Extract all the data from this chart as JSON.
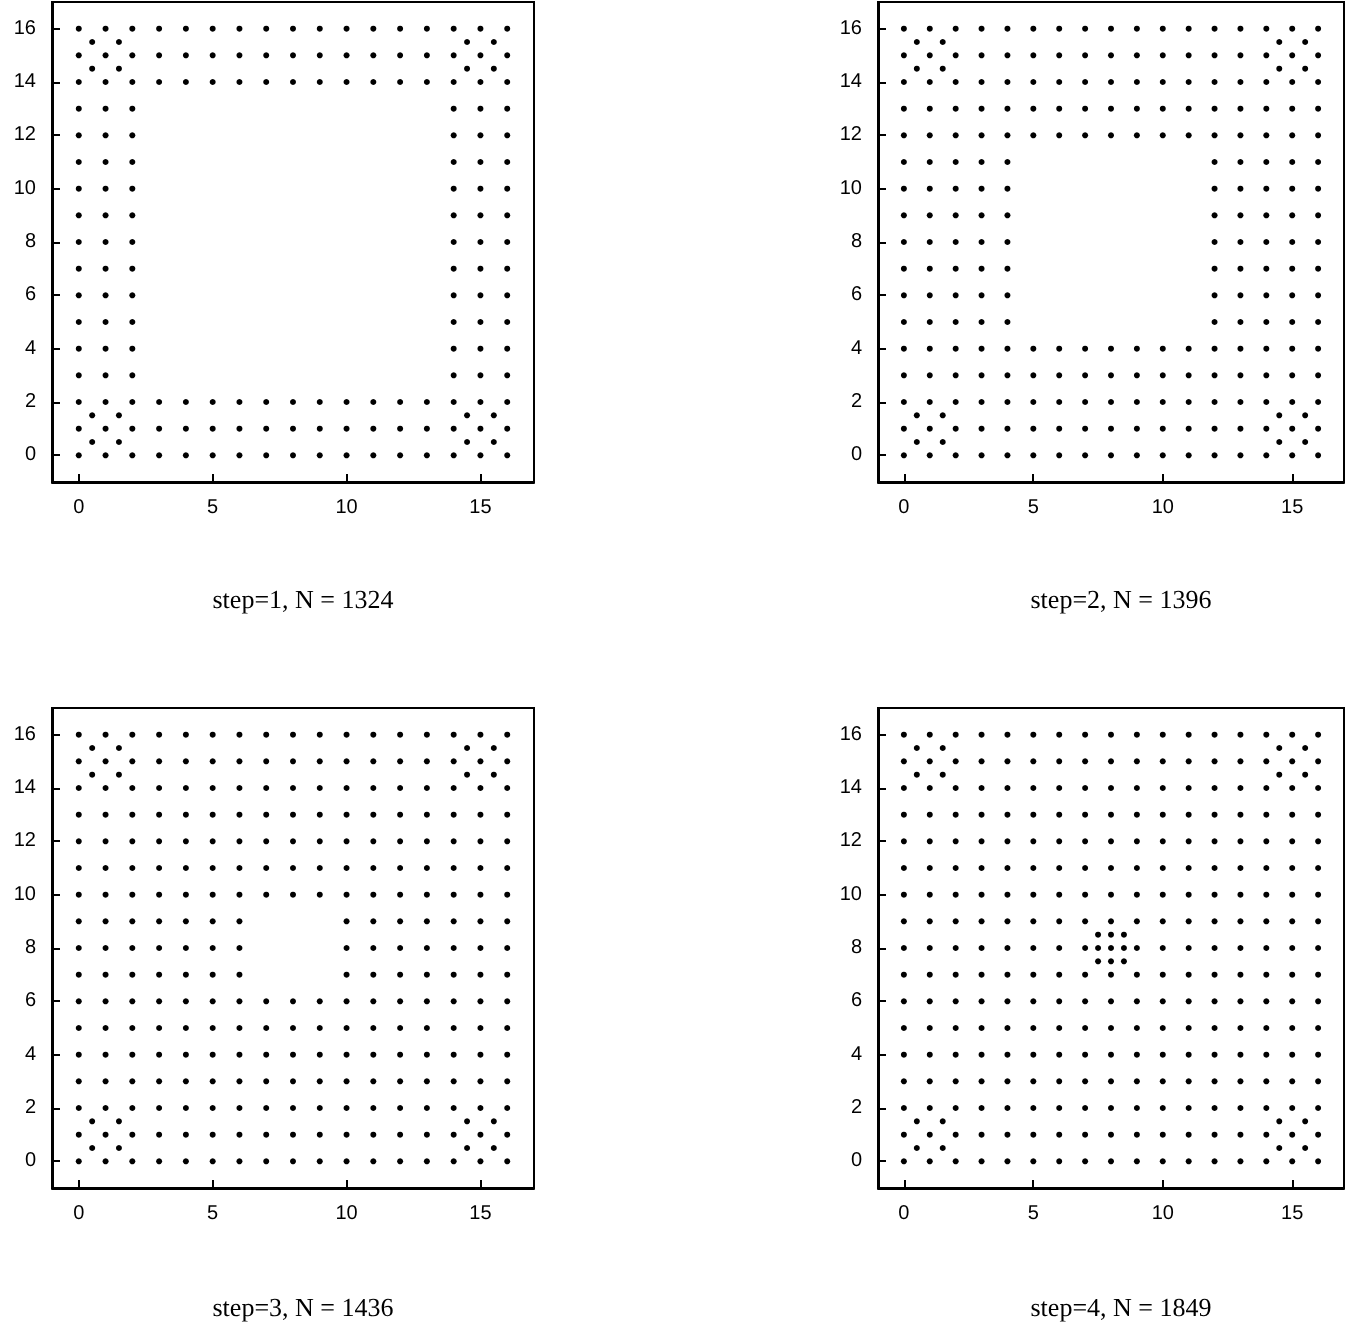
{
  "chart_data": [
    {
      "type": "scatter",
      "title": "step=1, N = 1324",
      "color": "#000000",
      "marker": "circle",
      "xlim": [
        -1,
        17
      ],
      "ylim": [
        -1,
        17
      ],
      "xticks": [
        0,
        5,
        10,
        15
      ],
      "yticks": [
        0,
        2,
        4,
        6,
        8,
        10,
        12,
        14,
        16
      ],
      "x": [
        0,
        1,
        2,
        3,
        4,
        5,
        6,
        7,
        8,
        9,
        10,
        11,
        12,
        13,
        14,
        15,
        16,
        0,
        1,
        2,
        3,
        4,
        5,
        6,
        7,
        8,
        9,
        10,
        11,
        12,
        13,
        14,
        15,
        16,
        0,
        0,
        0,
        0,
        0,
        0,
        0,
        0,
        0,
        0,
        0,
        0,
        0,
        0,
        0,
        16,
        16,
        16,
        16,
        16,
        16,
        16,
        16,
        16,
        16,
        16,
        16,
        16,
        16,
        16,
        0.5,
        1.5,
        0.5,
        1.5,
        14.5,
        15.5,
        14.5,
        15.5,
        0.5,
        1.5,
        0.5,
        1.5,
        14.5,
        15.5,
        14.5,
        15.5,
        1,
        2,
        3,
        4,
        5,
        6,
        7,
        8,
        9,
        10,
        11,
        12,
        13,
        14,
        15,
        1,
        2,
        3,
        4,
        5,
        6,
        7,
        8,
        9,
        10,
        11,
        12,
        13,
        14,
        15,
        1,
        2,
        14,
        15,
        1,
        2,
        14,
        15,
        1,
        2,
        14,
        15,
        1,
        2,
        14,
        15,
        1,
        2,
        14,
        15,
        1,
        2,
        14,
        15,
        1,
        2,
        14,
        15,
        1,
        2,
        14,
        15,
        1,
        2,
        14,
        15,
        1,
        2,
        14,
        15,
        1,
        2,
        14,
        15,
        1,
        2,
        3,
        4,
        5,
        6,
        7,
        8,
        9,
        10,
        11,
        12,
        13,
        14,
        15,
        1,
        2,
        3,
        4,
        5,
        6,
        7,
        8,
        9,
        10,
        11,
        12,
        13,
        14,
        15
      ],
      "values": [
        0,
        0,
        0,
        0,
        0,
        0,
        0,
        0,
        0,
        0,
        0,
        0,
        0,
        0,
        0,
        0,
        0,
        16,
        16,
        16,
        16,
        16,
        16,
        16,
        16,
        16,
        16,
        16,
        16,
        16,
        16,
        16,
        16,
        16,
        1,
        2,
        3,
        4,
        5,
        6,
        7,
        8,
        9,
        10,
        11,
        12,
        13,
        14,
        15,
        1,
        2,
        3,
        4,
        5,
        6,
        7,
        8,
        9,
        10,
        11,
        12,
        13,
        14,
        15,
        0.5,
        0.5,
        1.5,
        1.5,
        0.5,
        0.5,
        1.5,
        1.5,
        14.5,
        14.5,
        15.5,
        15.5,
        14.5,
        14.5,
        15.5,
        15.5,
        1,
        1,
        1,
        1,
        1,
        1,
        1,
        1,
        1,
        1,
        1,
        1,
        1,
        1,
        1,
        2,
        2,
        2,
        2,
        2,
        2,
        2,
        2,
        2,
        2,
        2,
        2,
        2,
        2,
        2,
        3,
        3,
        3,
        3,
        4,
        4,
        4,
        4,
        5,
        5,
        5,
        5,
        6,
        6,
        6,
        6,
        7,
        7,
        7,
        7,
        8,
        8,
        8,
        8,
        9,
        9,
        9,
        9,
        10,
        10,
        10,
        10,
        11,
        11,
        11,
        11,
        12,
        12,
        12,
        12,
        13,
        13,
        13,
        13,
        14,
        14,
        14,
        14,
        14,
        14,
        14,
        14,
        14,
        14,
        14,
        14,
        14,
        14,
        14,
        15,
        15,
        15,
        15,
        15,
        15,
        15,
        15,
        15,
        15,
        15,
        15,
        15,
        15,
        15
      ]
    },
    {
      "type": "scatter",
      "title": "step=2, N = 1396",
      "color": "#000000",
      "marker": "circle",
      "xlim": [
        -1,
        17
      ],
      "ylim": [
        -1,
        17
      ],
      "xticks": [
        0,
        5,
        10,
        15
      ],
      "yticks": [
        0,
        2,
        4,
        6,
        8,
        10,
        12,
        14,
        16
      ],
      "x": [
        0,
        1,
        2,
        3,
        4,
        5,
        6,
        7,
        8,
        9,
        10,
        11,
        12,
        13,
        14,
        15,
        16,
        0,
        1,
        2,
        3,
        4,
        5,
        6,
        7,
        8,
        9,
        10,
        11,
        12,
        13,
        14,
        15,
        16,
        0,
        0,
        0,
        0,
        0,
        0,
        0,
        0,
        0,
        0,
        0,
        0,
        0,
        0,
        0,
        16,
        16,
        16,
        16,
        16,
        16,
        16,
        16,
        16,
        16,
        16,
        16,
        16,
        16,
        16,
        0.5,
        1.5,
        0.5,
        1.5,
        14.5,
        15.5,
        14.5,
        15.5,
        0.5,
        1.5,
        0.5,
        1.5,
        14.5,
        15.5,
        14.5,
        15.5,
        1,
        2,
        3,
        4,
        5,
        6,
        7,
        8,
        9,
        10,
        11,
        12,
        13,
        14,
        15,
        1,
        2,
        3,
        4,
        5,
        6,
        7,
        8,
        9,
        10,
        11,
        12,
        13,
        14,
        15,
        1,
        2,
        3,
        4,
        5,
        6,
        7,
        8,
        9,
        10,
        11,
        12,
        13,
        14,
        15,
        1,
        2,
        3,
        4,
        5,
        6,
        7,
        8,
        9,
        10,
        11,
        12,
        13,
        14,
        15,
        1,
        2,
        3,
        4,
        12,
        13,
        14,
        15,
        1,
        2,
        3,
        4,
        12,
        13,
        14,
        15,
        1,
        2,
        3,
        4,
        12,
        13,
        14,
        15,
        1,
        2,
        3,
        4,
        12,
        13,
        14,
        15,
        1,
        2,
        3,
        4,
        12,
        13,
        14,
        15,
        1,
        2,
        3,
        4,
        12,
        13,
        14,
        15,
        1,
        2,
        3,
        4,
        12,
        13,
        14,
        15,
        1,
        2,
        3,
        4,
        5,
        6,
        7,
        8,
        9,
        10,
        11,
        12,
        13,
        14,
        15,
        1,
        2,
        3,
        4,
        5,
        6,
        7,
        8,
        9,
        10,
        11,
        12,
        13,
        14,
        15,
        1,
        2,
        3,
        4,
        5,
        6,
        7,
        8,
        9,
        10,
        11,
        12,
        13,
        14,
        15,
        1,
        2,
        3,
        4,
        5,
        6,
        7,
        8,
        9,
        10,
        11,
        12,
        13,
        14,
        15
      ],
      "values": [
        0,
        0,
        0,
        0,
        0,
        0,
        0,
        0,
        0,
        0,
        0,
        0,
        0,
        0,
        0,
        0,
        0,
        16,
        16,
        16,
        16,
        16,
        16,
        16,
        16,
        16,
        16,
        16,
        16,
        16,
        16,
        16,
        16,
        16,
        1,
        2,
        3,
        4,
        5,
        6,
        7,
        8,
        9,
        10,
        11,
        12,
        13,
        14,
        15,
        1,
        2,
        3,
        4,
        5,
        6,
        7,
        8,
        9,
        10,
        11,
        12,
        13,
        14,
        15,
        0.5,
        0.5,
        1.5,
        1.5,
        0.5,
        0.5,
        1.5,
        1.5,
        14.5,
        14.5,
        15.5,
        15.5,
        14.5,
        14.5,
        15.5,
        15.5,
        1,
        1,
        1,
        1,
        1,
        1,
        1,
        1,
        1,
        1,
        1,
        1,
        1,
        1,
        1,
        2,
        2,
        2,
        2,
        2,
        2,
        2,
        2,
        2,
        2,
        2,
        2,
        2,
        2,
        2,
        3,
        3,
        3,
        3,
        3,
        3,
        3,
        3,
        3,
        3,
        3,
        3,
        3,
        3,
        3,
        4,
        4,
        4,
        4,
        4,
        4,
        4,
        4,
        4,
        4,
        4,
        4,
        4,
        4,
        4,
        5,
        5,
        5,
        5,
        5,
        5,
        5,
        5,
        6,
        6,
        6,
        6,
        6,
        6,
        6,
        6,
        7,
        7,
        7,
        7,
        7,
        7,
        7,
        7,
        8,
        8,
        8,
        8,
        8,
        8,
        8,
        8,
        9,
        9,
        9,
        9,
        9,
        9,
        9,
        9,
        10,
        10,
        10,
        10,
        10,
        10,
        10,
        10,
        11,
        11,
        11,
        11,
        11,
        11,
        11,
        11,
        12,
        12,
        12,
        12,
        12,
        12,
        12,
        12,
        12,
        12,
        12,
        12,
        12,
        12,
        12,
        13,
        13,
        13,
        13,
        13,
        13,
        13,
        13,
        13,
        13,
        13,
        13,
        13,
        13,
        13,
        14,
        14,
        14,
        14,
        14,
        14,
        14,
        14,
        14,
        14,
        14,
        14,
        14,
        14,
        14,
        15,
        15,
        15,
        15,
        15,
        15,
        15,
        15,
        15,
        15,
        15,
        15,
        15,
        15,
        15
      ]
    },
    {
      "type": "scatter",
      "title": "step=3, N = 1436",
      "color": "#000000",
      "marker": "circle",
      "xlim": [
        -1,
        17
      ],
      "ylim": [
        -1,
        17
      ],
      "xticks": [
        0,
        5,
        10,
        15
      ],
      "yticks": [
        0,
        2,
        4,
        6,
        8,
        10,
        12,
        14,
        16
      ],
      "x": [
        0,
        1,
        2,
        3,
        4,
        5,
        6,
        7,
        8,
        9,
        10,
        11,
        12,
        13,
        14,
        15,
        16,
        0,
        1,
        2,
        3,
        4,
        5,
        6,
        7,
        8,
        9,
        10,
        11,
        12,
        13,
        14,
        15,
        16,
        0,
        0,
        0,
        0,
        0,
        0,
        0,
        0,
        0,
        0,
        0,
        0,
        0,
        0,
        0,
        16,
        16,
        16,
        16,
        16,
        16,
        16,
        16,
        16,
        16,
        16,
        16,
        16,
        16,
        16,
        0.5,
        1.5,
        0.5,
        1.5,
        14.5,
        15.5,
        14.5,
        15.5,
        0.5,
        1.5,
        0.5,
        1.5,
        14.5,
        15.5,
        14.5,
        15.5,
        1,
        2,
        3,
        4,
        5,
        6,
        7,
        8,
        9,
        10,
        11,
        12,
        13,
        14,
        15,
        1,
        2,
        3,
        4,
        5,
        6,
        7,
        8,
        9,
        10,
        11,
        12,
        13,
        14,
        15,
        1,
        2,
        3,
        4,
        5,
        6,
        7,
        8,
        9,
        10,
        11,
        12,
        13,
        14,
        15,
        1,
        2,
        3,
        4,
        5,
        6,
        7,
        8,
        9,
        10,
        11,
        12,
        13,
        14,
        15,
        1,
        2,
        3,
        4,
        5,
        6,
        7,
        8,
        9,
        10,
        11,
        12,
        13,
        14,
        15,
        1,
        2,
        3,
        4,
        5,
        6,
        7,
        8,
        9,
        10,
        11,
        12,
        13,
        14,
        15,
        1,
        2,
        3,
        4,
        5,
        6,
        10,
        11,
        12,
        13,
        14,
        15,
        1,
        2,
        3,
        4,
        5,
        6,
        10,
        11,
        12,
        13,
        14,
        15,
        1,
        2,
        3,
        4,
        5,
        6,
        10,
        11,
        12,
        13,
        14,
        15,
        1,
        2,
        3,
        4,
        5,
        6,
        7,
        8,
        9,
        10,
        11,
        12,
        13,
        14,
        15,
        1,
        2,
        3,
        4,
        5,
        6,
        7,
        8,
        9,
        10,
        11,
        12,
        13,
        14,
        15,
        1,
        2,
        3,
        4,
        5,
        6,
        7,
        8,
        9,
        10,
        11,
        12,
        13,
        14,
        15,
        1,
        2,
        3,
        4,
        5,
        6,
        7,
        8,
        9,
        10,
        11,
        12,
        13,
        14,
        15,
        1,
        2,
        3,
        4,
        5,
        6,
        7,
        8,
        9,
        10,
        11,
        12,
        13,
        14,
        15,
        1,
        2,
        3,
        4,
        5,
        6,
        7,
        8,
        9,
        10,
        11,
        12,
        13,
        14,
        15
      ],
      "values": [
        0,
        0,
        0,
        0,
        0,
        0,
        0,
        0,
        0,
        0,
        0,
        0,
        0,
        0,
        0,
        0,
        0,
        16,
        16,
        16,
        16,
        16,
        16,
        16,
        16,
        16,
        16,
        16,
        16,
        16,
        16,
        16,
        16,
        16,
        1,
        2,
        3,
        4,
        5,
        6,
        7,
        8,
        9,
        10,
        11,
        12,
        13,
        14,
        15,
        1,
        2,
        3,
        4,
        5,
        6,
        7,
        8,
        9,
        10,
        11,
        12,
        13,
        14,
        15,
        0.5,
        0.5,
        1.5,
        1.5,
        0.5,
        0.5,
        1.5,
        1.5,
        14.5,
        14.5,
        15.5,
        15.5,
        14.5,
        14.5,
        15.5,
        15.5,
        1,
        1,
        1,
        1,
        1,
        1,
        1,
        1,
        1,
        1,
        1,
        1,
        1,
        1,
        1,
        2,
        2,
        2,
        2,
        2,
        2,
        2,
        2,
        2,
        2,
        2,
        2,
        2,
        2,
        2,
        3,
        3,
        3,
        3,
        3,
        3,
        3,
        3,
        3,
        3,
        3,
        3,
        3,
        3,
        3,
        4,
        4,
        4,
        4,
        4,
        4,
        4,
        4,
        4,
        4,
        4,
        4,
        4,
        4,
        4,
        5,
        5,
        5,
        5,
        5,
        5,
        5,
        5,
        5,
        5,
        5,
        5,
        5,
        5,
        5,
        6,
        6,
        6,
        6,
        6,
        6,
        6,
        6,
        6,
        6,
        6,
        6,
        6,
        6,
        6,
        7,
        7,
        7,
        7,
        7,
        7,
        7,
        7,
        7,
        7,
        7,
        7,
        8,
        8,
        8,
        8,
        8,
        8,
        8,
        8,
        8,
        8,
        8,
        8,
        9,
        9,
        9,
        9,
        9,
        9,
        9,
        9,
        9,
        9,
        9,
        9,
        10,
        10,
        10,
        10,
        10,
        10,
        10,
        10,
        10,
        10,
        10,
        10,
        10,
        10,
        10,
        11,
        11,
        11,
        11,
        11,
        11,
        11,
        11,
        11,
        11,
        11,
        11,
        11,
        11,
        11,
        12,
        12,
        12,
        12,
        12,
        12,
        12,
        12,
        12,
        12,
        12,
        12,
        12,
        12,
        12,
        13,
        13,
        13,
        13,
        13,
        13,
        13,
        13,
        13,
        13,
        13,
        13,
        13,
        13,
        13,
        14,
        14,
        14,
        14,
        14,
        14,
        14,
        14,
        14,
        14,
        14,
        14,
        14,
        14,
        14,
        15,
        15,
        15,
        15,
        15,
        15,
        15,
        15,
        15,
        15,
        15,
        15,
        15,
        15,
        15
      ]
    },
    {
      "type": "scatter",
      "title": "step=4, N = 1849",
      "color": "#000000",
      "marker": "circle",
      "xlim": [
        -1,
        17
      ],
      "ylim": [
        -1,
        17
      ],
      "xticks": [
        0,
        5,
        10,
        15
      ],
      "yticks": [
        0,
        2,
        4,
        6,
        8,
        10,
        12,
        14,
        16
      ],
      "x": [
        0,
        1,
        2,
        3,
        4,
        5,
        6,
        7,
        8,
        9,
        10,
        11,
        12,
        13,
        14,
        15,
        16,
        0,
        1,
        2,
        3,
        4,
        5,
        6,
        7,
        8,
        9,
        10,
        11,
        12,
        13,
        14,
        15,
        16,
        0,
        0,
        0,
        0,
        0,
        0,
        0,
        0,
        0,
        0,
        0,
        0,
        0,
        0,
        0,
        16,
        16,
        16,
        16,
        16,
        16,
        16,
        16,
        16,
        16,
        16,
        16,
        16,
        16,
        16,
        0.5,
        1.5,
        0.5,
        1.5,
        14.5,
        15.5,
        14.5,
        15.5,
        0.5,
        1.5,
        0.5,
        1.5,
        14.5,
        15.5,
        14.5,
        15.5,
        7.5,
        8.5,
        7.5,
        8.5,
        8,
        8,
        7.5,
        8.5,
        1,
        2,
        3,
        4,
        5,
        6,
        7,
        8,
        9,
        10,
        11,
        12,
        13,
        14,
        15,
        1,
        2,
        3,
        4,
        5,
        6,
        7,
        8,
        9,
        10,
        11,
        12,
        13,
        14,
        15,
        1,
        2,
        3,
        4,
        5,
        6,
        7,
        8,
        9,
        10,
        11,
        12,
        13,
        14,
        15,
        1,
        2,
        3,
        4,
        5,
        6,
        7,
        8,
        9,
        10,
        11,
        12,
        13,
        14,
        15,
        1,
        2,
        3,
        4,
        5,
        6,
        7,
        8,
        9,
        10,
        11,
        12,
        13,
        14,
        15,
        1,
        2,
        3,
        4,
        5,
        6,
        7,
        8,
        9,
        10,
        11,
        12,
        13,
        14,
        15,
        1,
        2,
        3,
        4,
        5,
        6,
        7,
        8,
        9,
        10,
        11,
        12,
        13,
        14,
        15,
        1,
        2,
        3,
        4,
        5,
        6,
        7,
        8,
        9,
        10,
        11,
        12,
        13,
        14,
        15,
        1,
        2,
        3,
        4,
        5,
        6,
        7,
        8,
        9,
        10,
        11,
        12,
        13,
        14,
        15,
        1,
        2,
        3,
        4,
        5,
        6,
        7,
        8,
        9,
        10,
        11,
        12,
        13,
        14,
        15,
        1,
        2,
        3,
        4,
        5,
        6,
        7,
        8,
        9,
        10,
        11,
        12,
        13,
        14,
        15,
        1,
        2,
        3,
        4,
        5,
        6,
        7,
        8,
        9,
        10,
        11,
        12,
        13,
        14,
        15,
        1,
        2,
        3,
        4,
        5,
        6,
        7,
        8,
        9,
        10,
        11,
        12,
        13,
        14,
        15,
        1,
        2,
        3,
        4,
        5,
        6,
        7,
        8,
        9,
        10,
        11,
        12,
        13,
        14,
        15,
        1,
        2,
        3,
        4,
        5,
        6,
        7,
        8,
        9,
        10,
        11,
        12,
        13,
        14,
        15
      ],
      "values": [
        0,
        0,
        0,
        0,
        0,
        0,
        0,
        0,
        0,
        0,
        0,
        0,
        0,
        0,
        0,
        0,
        0,
        16,
        16,
        16,
        16,
        16,
        16,
        16,
        16,
        16,
        16,
        16,
        16,
        16,
        16,
        16,
        16,
        16,
        1,
        2,
        3,
        4,
        5,
        6,
        7,
        8,
        9,
        10,
        11,
        12,
        13,
        14,
        15,
        1,
        2,
        3,
        4,
        5,
        6,
        7,
        8,
        9,
        10,
        11,
        12,
        13,
        14,
        15,
        0.5,
        0.5,
        1.5,
        1.5,
        0.5,
        0.5,
        1.5,
        1.5,
        14.5,
        14.5,
        15.5,
        15.5,
        14.5,
        14.5,
        15.5,
        15.5,
        7.5,
        7.5,
        8.5,
        8.5,
        7.5,
        8.5,
        8,
        8,
        1,
        1,
        1,
        1,
        1,
        1,
        1,
        1,
        1,
        1,
        1,
        1,
        1,
        1,
        1,
        2,
        2,
        2,
        2,
        2,
        2,
        2,
        2,
        2,
        2,
        2,
        2,
        2,
        2,
        2,
        3,
        3,
        3,
        3,
        3,
        3,
        3,
        3,
        3,
        3,
        3,
        3,
        3,
        3,
        3,
        4,
        4,
        4,
        4,
        4,
        4,
        4,
        4,
        4,
        4,
        4,
        4,
        4,
        4,
        4,
        5,
        5,
        5,
        5,
        5,
        5,
        5,
        5,
        5,
        5,
        5,
        5,
        5,
        5,
        5,
        6,
        6,
        6,
        6,
        6,
        6,
        6,
        6,
        6,
        6,
        6,
        6,
        6,
        6,
        6,
        7,
        7,
        7,
        7,
        7,
        7,
        7,
        7,
        7,
        7,
        7,
        7,
        7,
        7,
        7,
        8,
        8,
        8,
        8,
        8,
        8,
        8,
        8,
        8,
        8,
        8,
        8,
        8,
        8,
        8,
        9,
        9,
        9,
        9,
        9,
        9,
        9,
        9,
        9,
        9,
        9,
        9,
        9,
        9,
        9,
        10,
        10,
        10,
        10,
        10,
        10,
        10,
        10,
        10,
        10,
        10,
        10,
        10,
        10,
        10,
        11,
        11,
        11,
        11,
        11,
        11,
        11,
        11,
        11,
        11,
        11,
        11,
        11,
        11,
        11,
        12,
        12,
        12,
        12,
        12,
        12,
        12,
        12,
        12,
        12,
        12,
        12,
        12,
        12,
        12,
        13,
        13,
        13,
        13,
        13,
        13,
        13,
        13,
        13,
        13,
        13,
        13,
        13,
        13,
        13,
        14,
        14,
        14,
        14,
        14,
        14,
        14,
        14,
        14,
        14,
        14,
        14,
        14,
        14,
        14,
        15,
        15,
        15,
        15,
        15,
        15,
        15,
        15,
        15,
        15,
        15,
        15,
        15,
        15,
        15
      ]
    }
  ]
}
